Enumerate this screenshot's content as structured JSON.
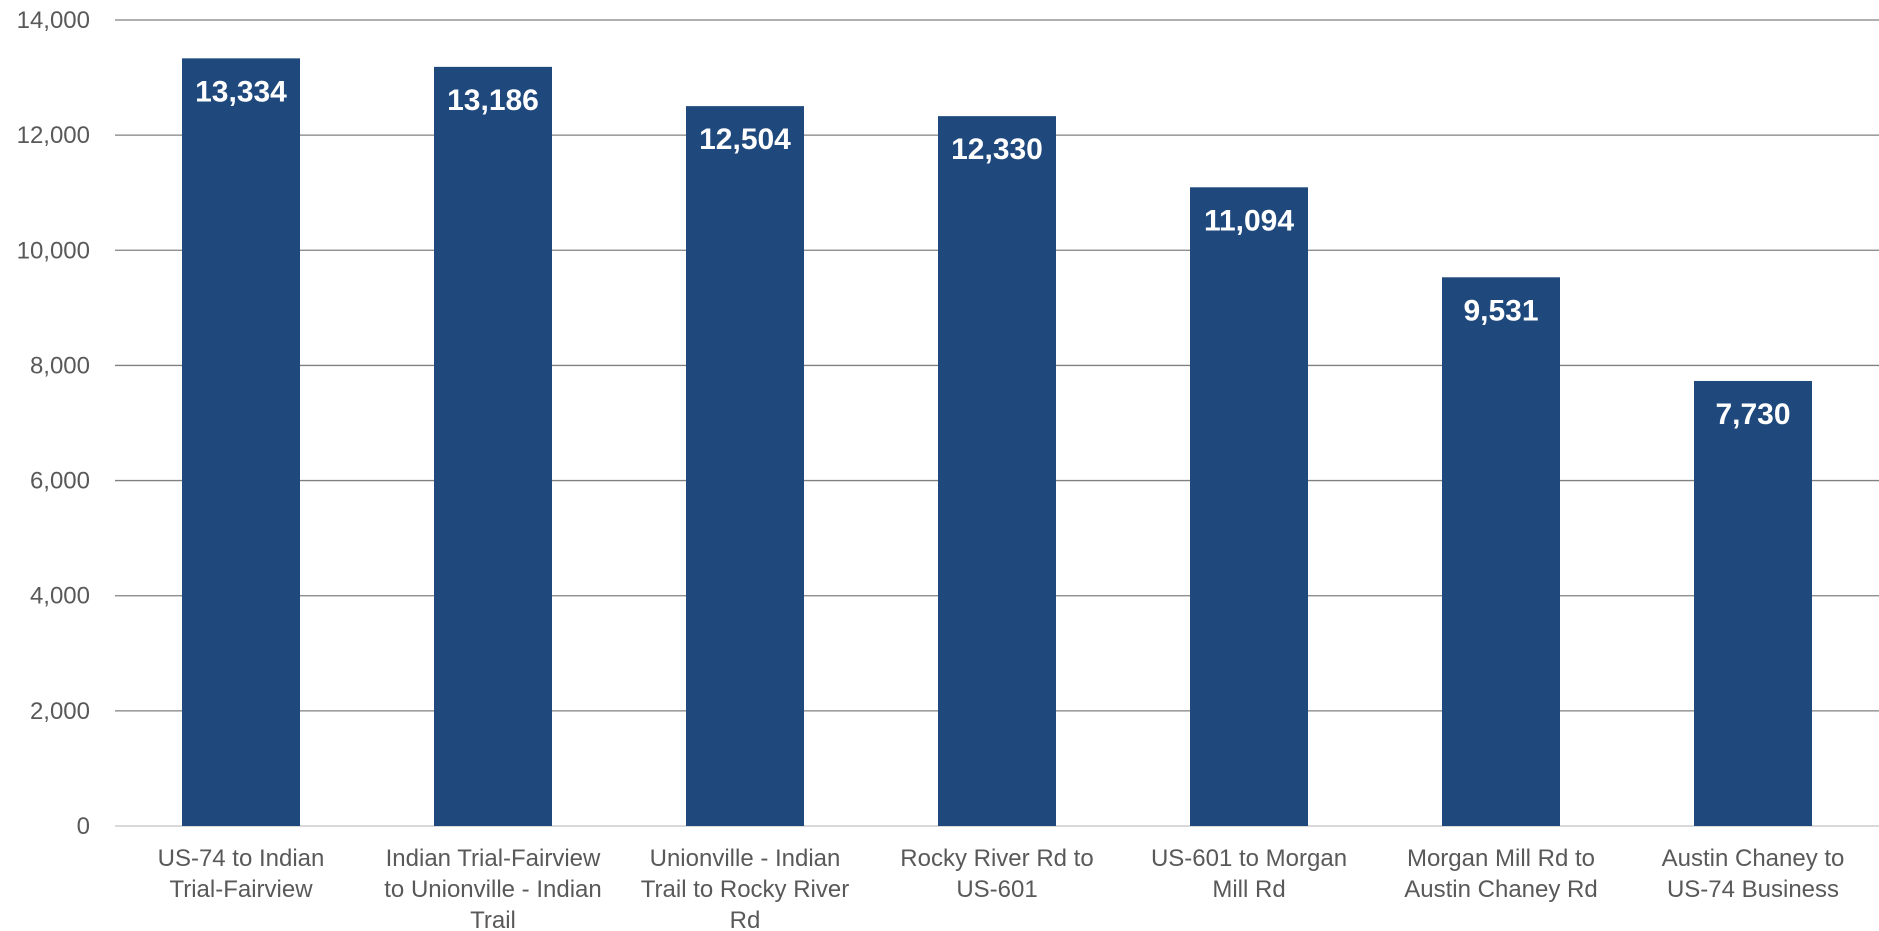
{
  "chart_data": {
    "type": "bar",
    "categories": [
      [
        "US-74 to Indian",
        "Trial-Fairview"
      ],
      [
        "Indian Trial-Fairview",
        "to Unionville - Indian",
        "Trail"
      ],
      [
        "Unionville - Indian",
        "Trail to Rocky River",
        "Rd"
      ],
      [
        "Rocky River Rd to",
        "US-601"
      ],
      [
        "US-601 to Morgan",
        "Mill Rd"
      ],
      [
        "Morgan Mill Rd to",
        "Austin Chaney Rd"
      ],
      [
        "Austin Chaney to",
        "US-74 Business"
      ]
    ],
    "values": [
      13334,
      13186,
      12504,
      12330,
      11094,
      9531,
      7730
    ],
    "data_labels": [
      "13,334",
      "13,186",
      "12,504",
      "12,330",
      "11,094",
      "9,531",
      "7,730"
    ],
    "y_ticks": [
      0,
      2000,
      4000,
      6000,
      8000,
      10000,
      12000,
      14000
    ],
    "y_tick_labels": [
      "0",
      "2,000",
      "4,000",
      "6,000",
      "8,000",
      "10,000",
      "12,000",
      "14,000"
    ],
    "ylim": [
      0,
      14000
    ],
    "grid": true,
    "colors": {
      "bar": "#1F497D",
      "grid": "#808080",
      "axis": "#D9D9D9",
      "label": "#595959",
      "data_label": "#FFFFFF"
    }
  }
}
